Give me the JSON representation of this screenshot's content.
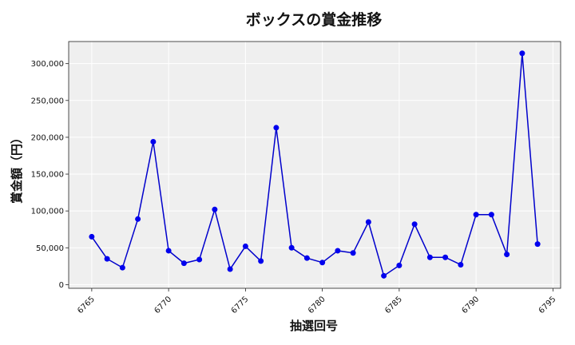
{
  "chart_data": {
    "type": "line",
    "title": "ボックスの賞金推移",
    "xlabel": "抽選回号",
    "ylabel": "賞金額（円）",
    "xlim": [
      6763.5,
      6795.5
    ],
    "ylim": [
      -5000,
      330000
    ],
    "x_ticks": [
      6765,
      6770,
      6775,
      6780,
      6785,
      6790,
      6795
    ],
    "x_tick_labels": [
      "6765",
      "6770",
      "6775",
      "6780",
      "6785",
      "6790",
      "6795"
    ],
    "y_ticks": [
      0,
      50000,
      100000,
      150000,
      200000,
      250000,
      300000
    ],
    "y_tick_labels": [
      "0",
      "50,000",
      "100,000",
      "150,000",
      "200,000",
      "250,000",
      "300,000"
    ],
    "grid": true,
    "colors": {
      "line": "#0000cc",
      "marker": "#0000ee",
      "plot_bg": "#efefef",
      "grid": "#ffffff"
    },
    "series": [
      {
        "x": [
          6765,
          6766,
          6767,
          6768,
          6769,
          6770,
          6771,
          6772,
          6773,
          6774,
          6775,
          6776,
          6777,
          6778,
          6779,
          6780,
          6781,
          6782,
          6783,
          6784,
          6785,
          6786,
          6787,
          6788,
          6789,
          6790,
          6791,
          6792,
          6793,
          6794
        ],
        "values": [
          65000,
          35000,
          23000,
          89000,
          194000,
          46000,
          29000,
          34000,
          102000,
          21000,
          52000,
          32000,
          213000,
          50000,
          36000,
          30000,
          46000,
          43000,
          85000,
          12000,
          26000,
          82000,
          37000,
          37000,
          27000,
          95000,
          95000,
          41000,
          314000,
          55000
        ]
      }
    ]
  }
}
